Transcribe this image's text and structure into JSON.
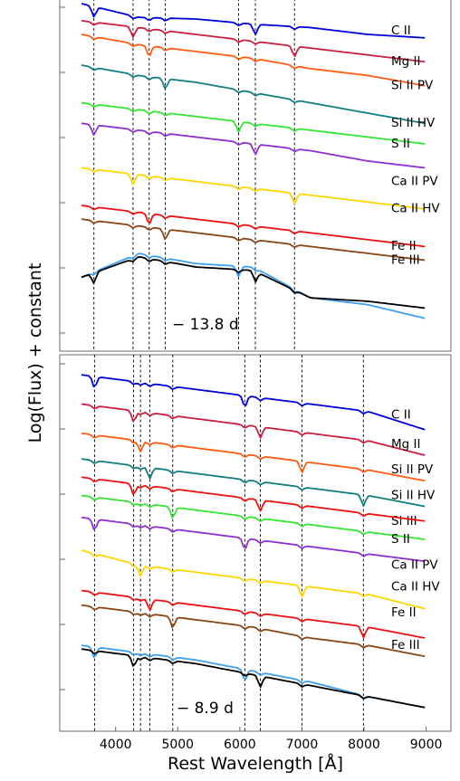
{
  "chart_data": [
    {
      "type": "line",
      "panel": "top",
      "epoch_label": "− 13.8 d",
      "xlim": [
        3100,
        9400
      ],
      "line_markers_angstrom": [
        3650,
        4280,
        4540,
        4800,
        5980,
        6250,
        6880
      ],
      "series": [
        {
          "name": "C II",
          "color": "#0000dd",
          "label_y": 0.09,
          "y": [
            0.0,
            0.04,
            0.045,
            0.06,
            0.07,
            0.09,
            0.1
          ]
        },
        {
          "name": "Mg II",
          "color": "#cc1f3f",
          "label_y": 0.18,
          "y": [
            0.05,
            0.07,
            0.09,
            0.11,
            0.13,
            0.15,
            0.17
          ]
        },
        {
          "name": "Si II PV",
          "color": "#ff5a10",
          "label_y": 0.25,
          "y": [
            0.09,
            0.12,
            0.14,
            0.16,
            0.19,
            0.21,
            0.24
          ]
        },
        {
          "name": "Si II HV",
          "color": "#0f7f7f",
          "label_y": 0.36,
          "y": [
            0.18,
            0.21,
            0.23,
            0.26,
            0.29,
            0.32,
            0.35
          ]
        },
        {
          "name": "S II",
          "color": "#33e633",
          "label_y": 0.42,
          "y": [
            0.29,
            0.31,
            0.33,
            0.35,
            0.37,
            0.39,
            0.41
          ]
        },
        {
          "name": "Ca II PV",
          "color": "#8e2fd0",
          "label_y": 0.53,
          "y": [
            0.35,
            0.37,
            0.39,
            0.41,
            0.43,
            0.46,
            0.48
          ]
        },
        {
          "name": "Ca II HV",
          "color": "#ffd700",
          "label_y": 0.61,
          "y": [
            0.48,
            0.5,
            0.52,
            0.54,
            0.56,
            0.58,
            0.6
          ]
        },
        {
          "name": "Fe II",
          "color": "#ee1111",
          "label_y": 0.72,
          "y": [
            0.59,
            0.61,
            0.63,
            0.65,
            0.67,
            0.69,
            0.71
          ]
        },
        {
          "name": "Fe III",
          "color": "#8b4513",
          "label_y": 0.76,
          "y": [
            0.63,
            0.65,
            0.67,
            0.69,
            0.71,
            0.73,
            0.75
          ]
        },
        {
          "color": "#3ca0ee",
          "y": [
            0.8,
            0.73,
            0.76,
            0.77,
            0.86,
            0.88,
            0.92
          ]
        },
        {
          "color": "#000000",
          "y": [
            0.8,
            0.74,
            0.77,
            0.78,
            0.86,
            0.87,
            0.89
          ]
        }
      ]
    },
    {
      "type": "line",
      "panel": "bottom",
      "epoch_label": "− 8.9 d",
      "xlabel": "Rest Wavelength [Å]",
      "xlim": [
        3100,
        9400
      ],
      "xticks": [
        4000,
        5000,
        6000,
        7000,
        8000,
        9000
      ],
      "line_markers_angstrom": [
        3660,
        4290,
        4400,
        4550,
        4920,
        6080,
        6330,
        7000,
        7990
      ],
      "series": [
        {
          "name": "C II",
          "color": "#0000dd",
          "label_y": 0.16,
          "y": [
            0.04,
            0.06,
            0.08,
            0.1,
            0.12,
            0.14,
            0.19
          ]
        },
        {
          "name": "Mg II",
          "color": "#cc1f3f",
          "label_y": 0.24,
          "y": [
            0.12,
            0.14,
            0.16,
            0.18,
            0.2,
            0.22,
            0.26
          ]
        },
        {
          "name": "Si II PV",
          "color": "#ff5a10",
          "label_y": 0.31,
          "y": [
            0.2,
            0.22,
            0.24,
            0.26,
            0.28,
            0.3,
            0.33
          ]
        },
        {
          "name": "Si II HV",
          "color": "#0f7f7f",
          "label_y": 0.38,
          "y": [
            0.27,
            0.29,
            0.31,
            0.33,
            0.35,
            0.37,
            0.4
          ]
        },
        {
          "name": "Si III",
          "color": "#33e633",
          "label_y": 0.45,
          "y": [
            0.37,
            0.39,
            0.41,
            0.43,
            0.45,
            0.47,
            0.49
          ]
        },
        {
          "name": "S II",
          "color": "#8e2fd0",
          "label_y": 0.5,
          "y": [
            0.43,
            0.45,
            0.47,
            0.49,
            0.51,
            0.53,
            0.55
          ]
        },
        {
          "name": "Ca II PV",
          "color": "#ee1111",
          "label_y": 0.57,
          "y": [
            0.32,
            0.34,
            0.36,
            0.38,
            0.4,
            0.42,
            0.44
          ]
        },
        {
          "name": "Ca II HV",
          "color": "#ffd700",
          "label_y": 0.63,
          "y": [
            0.52,
            0.56,
            0.58,
            0.6,
            0.62,
            0.64,
            0.68
          ]
        },
        {
          "name": "Fe II",
          "color": "#ee1111",
          "label_y": 0.7,
          "y": [
            0.63,
            0.65,
            0.67,
            0.69,
            0.71,
            0.73,
            0.76
          ]
        },
        {
          "name": "Fe III",
          "color": "#8b4513",
          "label_y": 0.79,
          "y": [
            0.67,
            0.69,
            0.71,
            0.73,
            0.76,
            0.78,
            0.81
          ]
        },
        {
          "color": "#3ca0ee",
          "y": [
            0.78,
            0.8,
            0.82,
            0.85,
            0.88,
            0.92,
            0.95
          ]
        },
        {
          "color": "#000000",
          "y": [
            0.79,
            0.81,
            0.83,
            0.86,
            0.89,
            0.92,
            0.95
          ]
        }
      ]
    }
  ],
  "ylabel": "Log(Flux) + constant"
}
